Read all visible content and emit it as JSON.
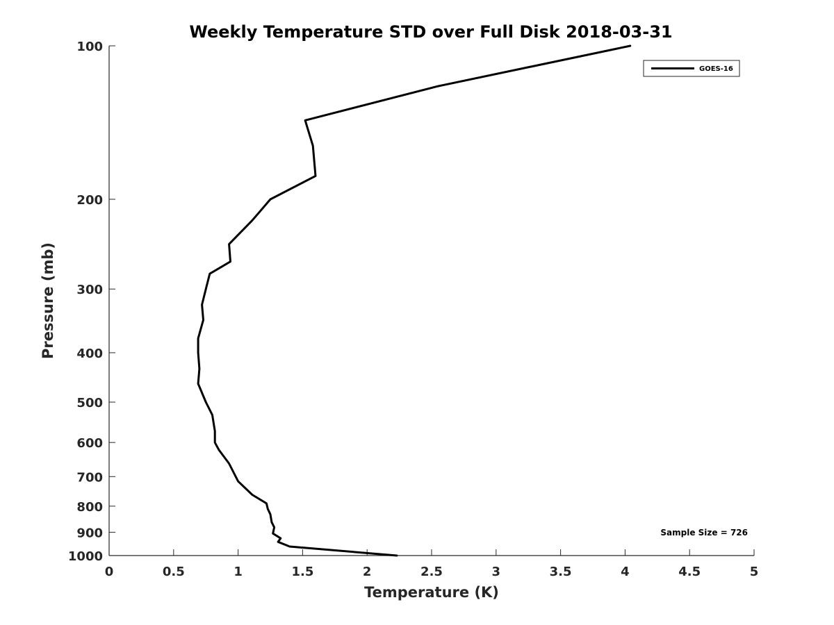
{
  "chart_data": {
    "type": "line",
    "title": "Weekly Temperature STD over Full Disk 2018-03-31",
    "xlabel": "Temperature (K)",
    "ylabel": "Pressure (mb)",
    "xlim": [
      0,
      5
    ],
    "ylim": [
      100,
      1000
    ],
    "y_scale": "log",
    "y_reversed": true,
    "grid": false,
    "legend_position": "top-right",
    "x_ticks": [
      0,
      0.5,
      1,
      1.5,
      2,
      2.5,
      3,
      3.5,
      4,
      4.5,
      5
    ],
    "x_tick_labels": [
      "0",
      "0.5",
      "1",
      "1.5",
      "2",
      "2.5",
      "3",
      "3.5",
      "4",
      "4.5",
      "5"
    ],
    "y_ticks": [
      100,
      200,
      300,
      400,
      500,
      600,
      700,
      800,
      900,
      1000
    ],
    "y_tick_labels": [
      "100",
      "200",
      "300",
      "400",
      "500",
      "600",
      "700",
      "800",
      "900",
      "1000"
    ],
    "series": [
      {
        "name": "GOES-16",
        "color": "#000000",
        "x": [
          4.04,
          2.55,
          1.52,
          1.58,
          1.6,
          1.25,
          1.11,
          0.93,
          0.94,
          0.78,
          0.75,
          0.72,
          0.73,
          0.69,
          0.69,
          0.7,
          0.69,
          0.75,
          0.8,
          0.82,
          0.82,
          0.85,
          0.93,
          1.0,
          1.11,
          1.22,
          1.23,
          1.25,
          1.26,
          1.28,
          1.27,
          1.33,
          1.31,
          1.4,
          2.23
        ],
        "y": [
          100,
          120,
          140,
          157,
          180,
          200,
          220,
          245,
          265,
          280,
          300,
          322,
          345,
          375,
          400,
          430,
          460,
          500,
          530,
          570,
          600,
          620,
          660,
          715,
          760,
          790,
          810,
          830,
          860,
          880,
          905,
          925,
          940,
          960,
          1000
        ]
      }
    ],
    "annotations": [
      "Sample Size = 726"
    ]
  }
}
